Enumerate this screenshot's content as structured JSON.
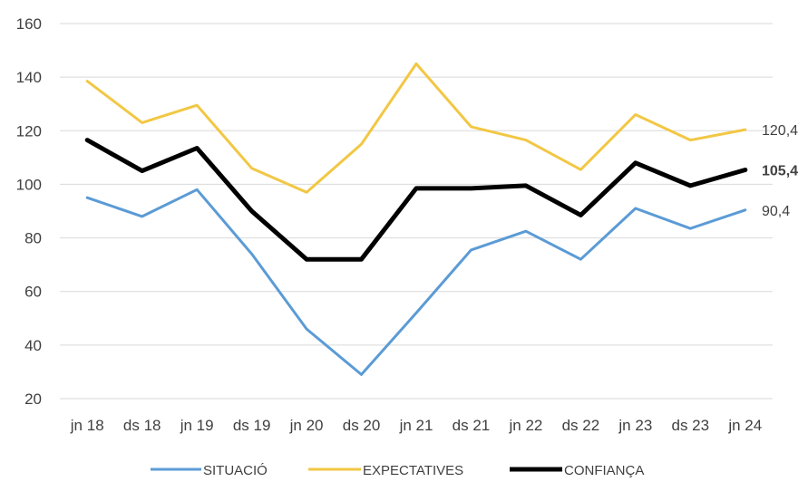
{
  "chart_data": {
    "type": "line",
    "categories": [
      "jn 18",
      "ds 18",
      "jn 19",
      "ds 19",
      "jn 20",
      "ds 20",
      "jn 21",
      "ds 21",
      "jn 22",
      "ds 22",
      "jn 23",
      "ds 23",
      "jn 24"
    ],
    "ylim": [
      20,
      160
    ],
    "yticks": [
      "20",
      "40",
      "60",
      "80",
      "100",
      "120",
      "140",
      "160"
    ],
    "grid": "horizontal",
    "legend_position": "bottom",
    "series": [
      {
        "name": "SITUACIÓ",
        "color": "#5b9bd5",
        "end_label": "90,4",
        "values": [
          95,
          88,
          98,
          74,
          46,
          29,
          52,
          75.5,
          82.5,
          72,
          91,
          83.5,
          90.4
        ]
      },
      {
        "name": "EXPECTATIVES",
        "color": "#f2c744",
        "end_label": "120,4",
        "values": [
          138.5,
          123,
          129.5,
          106,
          97,
          115,
          145,
          121.5,
          116.5,
          105.5,
          126,
          116.5,
          120.4
        ]
      },
      {
        "name": "CONFIANÇA",
        "color": "#000000",
        "end_label": "105,4",
        "values": [
          116.5,
          105,
          113.5,
          90,
          72,
          72,
          98.5,
          98.5,
          99.5,
          88.5,
          108,
          99.5,
          105.4
        ]
      }
    ]
  }
}
